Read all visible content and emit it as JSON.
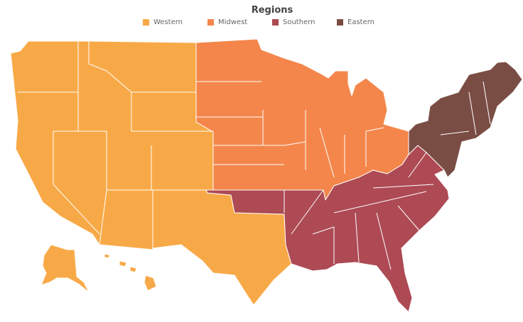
{
  "legend": {
    "title": "Regions",
    "items": [
      {
        "label": "Western",
        "color": "#F8A947"
      },
      {
        "label": "Midwest",
        "color": "#F4864B"
      },
      {
        "label": "Southern",
        "color": "#AD4A54"
      },
      {
        "label": "Eastern",
        "color": "#7A4D44"
      }
    ]
  }
}
